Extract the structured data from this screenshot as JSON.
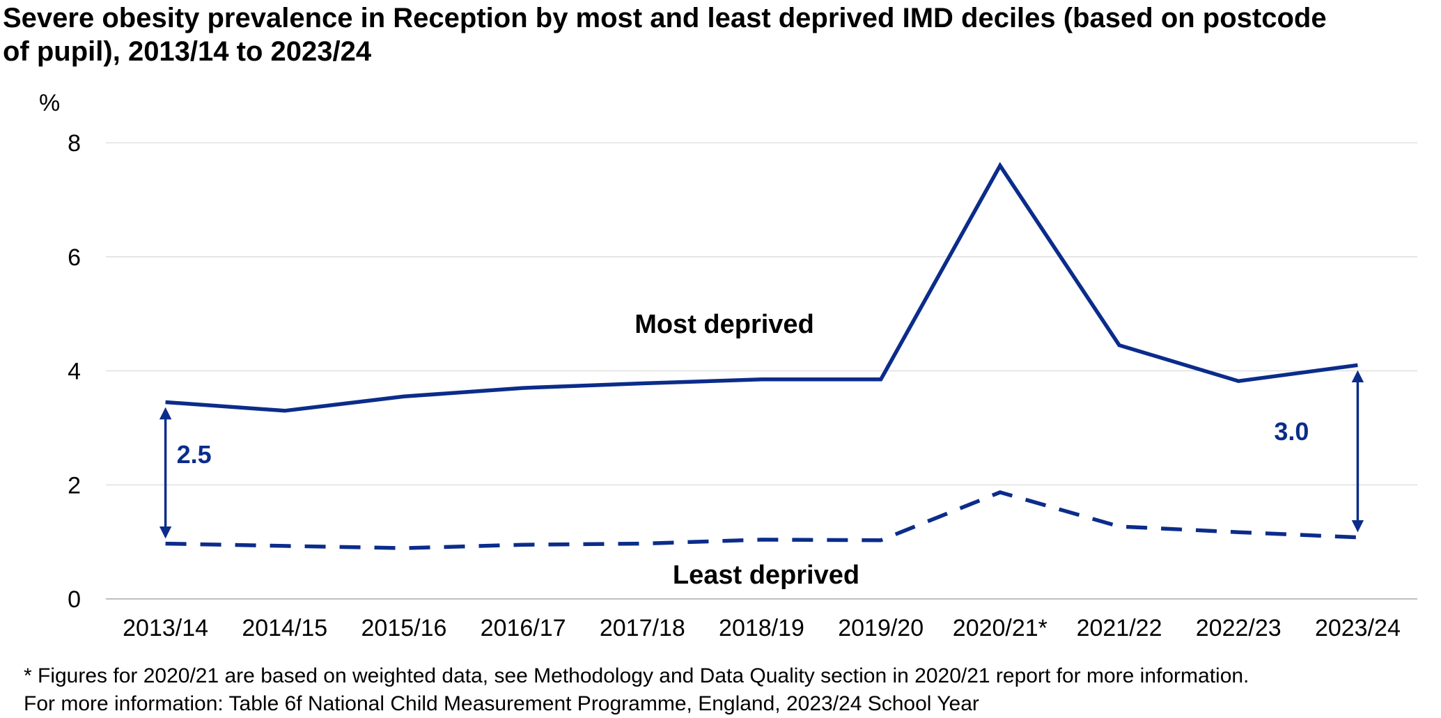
{
  "chart_data": {
    "type": "line",
    "title": "Severe obesity prevalence in Reception by most and least deprived IMD deciles (based on postcode of pupil), 2013/14 to 2023/24",
    "title_lines": [
      "Severe obesity prevalence in Reception by most and least deprived IMD deciles (based on postcode",
      "of pupil), 2013/14 to 2023/24"
    ],
    "xlabel": "",
    "ylabel": "%",
    "ylim": [
      0,
      8
    ],
    "yticks": [
      0,
      2,
      4,
      6,
      8
    ],
    "grid": true,
    "categories": [
      "2013/14",
      "2014/15",
      "2015/16",
      "2016/17",
      "2017/18",
      "2018/19",
      "2019/20",
      "2020/21*",
      "2021/22",
      "2022/23",
      "2023/24"
    ],
    "series": [
      {
        "name": "Most deprived",
        "style": "solid",
        "color": "#0b2c8a",
        "values": [
          3.45,
          3.3,
          3.55,
          3.7,
          3.78,
          3.85,
          3.85,
          7.6,
          4.45,
          3.82,
          4.1
        ]
      },
      {
        "name": "Least deprived",
        "style": "dashed",
        "color": "#0b2c8a",
        "values": [
          0.97,
          0.93,
          0.89,
          0.95,
          0.97,
          1.04,
          1.03,
          1.87,
          1.27,
          1.17,
          1.08
        ]
      }
    ],
    "annotations": [
      {
        "text": "2.5",
        "category_index": 0,
        "from": 0.97,
        "to": 3.45,
        "side": "right"
      },
      {
        "text": "3.0",
        "category_index": 10,
        "from": 1.08,
        "to": 4.1,
        "side": "left"
      }
    ]
  },
  "footnotes": [
    "* Figures for 2020/21 are based on weighted data, see Methodology and Data Quality section in 2020/21 report for more information.",
    "For more information: Table 6f National Child Measurement Programme, England, 2023/24 School Year"
  ],
  "colors": {
    "series": "#0b2c8a",
    "grid": "#d9d9d9",
    "axis": "#bfbfbf"
  }
}
